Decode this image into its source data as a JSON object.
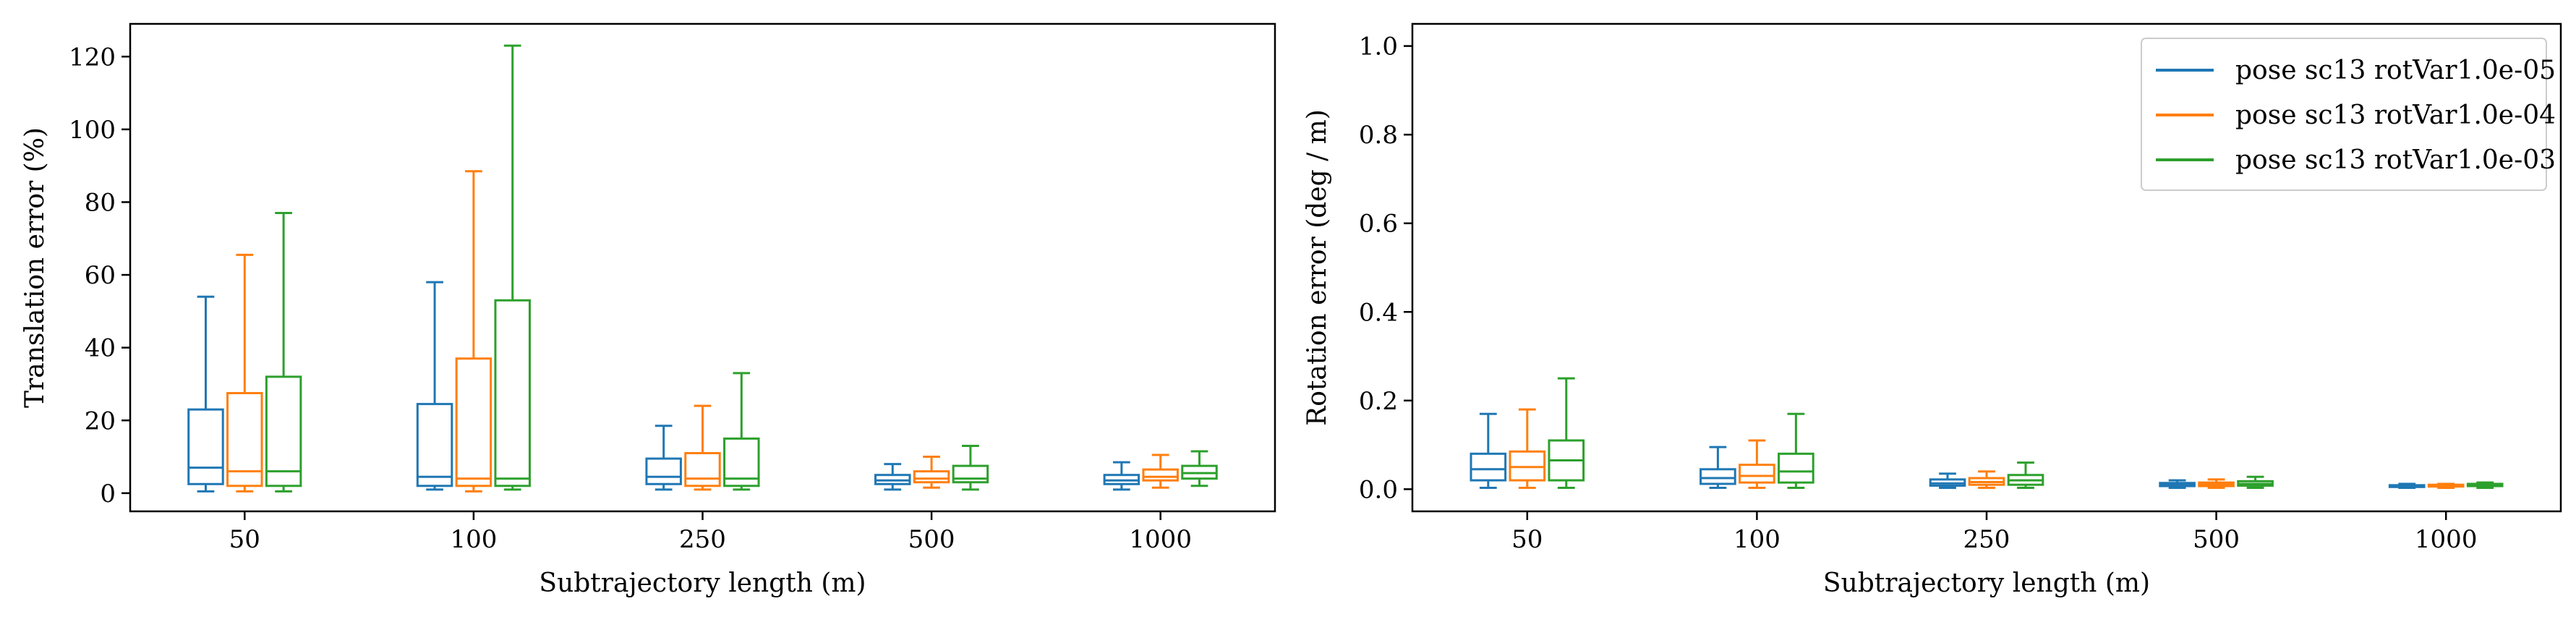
{
  "colors": {
    "pose sc13 rotVar1.0e-05": "#1f77b4",
    "pose sc13 rotVar1.0e-04": "#ff7f0e",
    "pose sc13 rotVar1.0e-03": "#2ca02c"
  },
  "legend": {
    "placement": "top-right of right panel",
    "entries": [
      "pose sc13 rotVar1.0e-05",
      "pose sc13 rotVar1.0e-04",
      "pose sc13 rotVar1.0e-03"
    ]
  },
  "chart_data": [
    {
      "type": "box",
      "xlabel": "Subtrajectory length (m)",
      "ylabel": "Translation error (%)",
      "categories": [
        "50",
        "100",
        "250",
        "500",
        "1000"
      ],
      "ylim": [
        -5,
        129
      ],
      "yticks": [
        0,
        20,
        40,
        60,
        80,
        100,
        120
      ],
      "grid": false,
      "series": [
        {
          "name": "pose sc13 rotVar1.0e-05",
          "boxes": [
            {
              "min": 0.5,
              "q1": 2.5,
              "median": 7,
              "q3": 23,
              "max": 54
            },
            {
              "min": 1,
              "q1": 2,
              "median": 4.5,
              "q3": 24.5,
              "max": 58
            },
            {
              "min": 1,
              "q1": 2.5,
              "median": 4.5,
              "q3": 9.5,
              "max": 18.5
            },
            {
              "min": 1,
              "q1": 2.5,
              "median": 3.5,
              "q3": 5,
              "max": 8
            },
            {
              "min": 1,
              "q1": 2.5,
              "median": 3.5,
              "q3": 5,
              "max": 8.5
            }
          ]
        },
        {
          "name": "pose sc13 rotVar1.0e-04",
          "boxes": [
            {
              "min": 0.5,
              "q1": 2,
              "median": 6,
              "q3": 27.5,
              "max": 65.5
            },
            {
              "min": 0.5,
              "q1": 2,
              "median": 4,
              "q3": 37,
              "max": 88.5
            },
            {
              "min": 1,
              "q1": 2,
              "median": 4,
              "q3": 11,
              "max": 24
            },
            {
              "min": 1.5,
              "q1": 3,
              "median": 4,
              "q3": 6,
              "max": 10
            },
            {
              "min": 1.5,
              "q1": 3.5,
              "median": 4.5,
              "q3": 6.5,
              "max": 10.5
            }
          ]
        },
        {
          "name": "pose sc13 rotVar1.0e-03",
          "boxes": [
            {
              "min": 0.5,
              "q1": 2,
              "median": 6,
              "q3": 32,
              "max": 77
            },
            {
              "min": 1,
              "q1": 2,
              "median": 4,
              "q3": 53,
              "max": 123
            },
            {
              "min": 1,
              "q1": 2,
              "median": 4,
              "q3": 15,
              "max": 33
            },
            {
              "min": 1,
              "q1": 3,
              "median": 4,
              "q3": 7.5,
              "max": 13
            },
            {
              "min": 2,
              "q1": 4,
              "median": 5.5,
              "q3": 7.5,
              "max": 11.5
            }
          ]
        }
      ]
    },
    {
      "type": "box",
      "xlabel": "Subtrajectory length (m)",
      "ylabel": "Rotation error (deg / m)",
      "categories": [
        "50",
        "100",
        "250",
        "500",
        "1000"
      ],
      "ylim": [
        -0.05,
        1.05
      ],
      "yticks": [
        0.0,
        0.2,
        0.4,
        0.6,
        0.8,
        1.0
      ],
      "ytick_labels": [
        "0.0",
        "0.2",
        "0.4",
        "0.6",
        "0.8",
        "1.0"
      ],
      "grid": false,
      "series": [
        {
          "name": "pose sc13 rotVar1.0e-05",
          "boxes": [
            {
              "min": 0.003,
              "q1": 0.02,
              "median": 0.045,
              "q3": 0.08,
              "max": 0.17
            },
            {
              "min": 0.003,
              "q1": 0.012,
              "median": 0.025,
              "q3": 0.045,
              "max": 0.095
            },
            {
              "min": 0.003,
              "q1": 0.008,
              "median": 0.013,
              "q3": 0.022,
              "max": 0.035
            },
            {
              "min": 0.003,
              "q1": 0.007,
              "median": 0.01,
              "q3": 0.014,
              "max": 0.02
            },
            {
              "min": 0.003,
              "q1": 0.005,
              "median": 0.007,
              "q3": 0.009,
              "max": 0.012
            }
          ]
        },
        {
          "name": "pose sc13 rotVar1.0e-04",
          "boxes": [
            {
              "min": 0.003,
              "q1": 0.02,
              "median": 0.05,
              "q3": 0.085,
              "max": 0.18
            },
            {
              "min": 0.003,
              "q1": 0.015,
              "median": 0.03,
              "q3": 0.055,
              "max": 0.11
            },
            {
              "min": 0.003,
              "q1": 0.01,
              "median": 0.016,
              "q3": 0.025,
              "max": 0.04
            },
            {
              "min": 0.003,
              "q1": 0.007,
              "median": 0.011,
              "q3": 0.015,
              "max": 0.022
            },
            {
              "min": 0.003,
              "q1": 0.006,
              "median": 0.008,
              "q3": 0.01,
              "max": 0.012
            }
          ]
        },
        {
          "name": "pose sc13 rotVar1.0e-03",
          "boxes": [
            {
              "min": 0.003,
              "q1": 0.02,
              "median": 0.065,
              "q3": 0.11,
              "max": 0.25
            },
            {
              "min": 0.003,
              "q1": 0.015,
              "median": 0.04,
              "q3": 0.08,
              "max": 0.17
            },
            {
              "min": 0.003,
              "q1": 0.01,
              "median": 0.02,
              "q3": 0.032,
              "max": 0.06
            },
            {
              "min": 0.003,
              "q1": 0.008,
              "median": 0.012,
              "q3": 0.018,
              "max": 0.028
            },
            {
              "min": 0.003,
              "q1": 0.007,
              "median": 0.009,
              "q3": 0.012,
              "max": 0.015
            }
          ]
        }
      ]
    }
  ]
}
